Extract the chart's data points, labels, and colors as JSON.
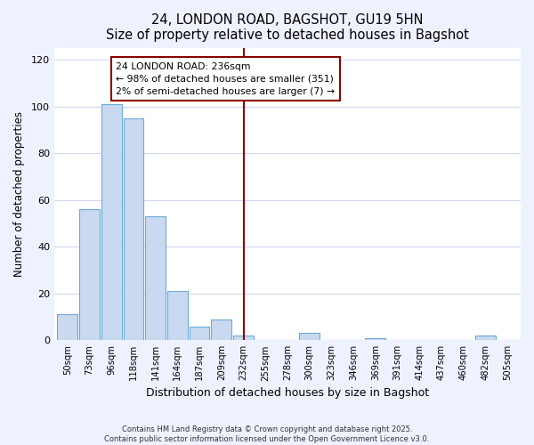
{
  "title": "24, LONDON ROAD, BAGSHOT, GU19 5HN",
  "subtitle": "Size of property relative to detached houses in Bagshot",
  "xlabel": "Distribution of detached houses by size in Bagshot",
  "ylabel": "Number of detached properties",
  "bar_labels": [
    "50sqm",
    "73sqm",
    "96sqm",
    "118sqm",
    "141sqm",
    "164sqm",
    "187sqm",
    "209sqm",
    "232sqm",
    "255sqm",
    "278sqm",
    "300sqm",
    "323sqm",
    "346sqm",
    "369sqm",
    "391sqm",
    "414sqm",
    "437sqm",
    "460sqm",
    "482sqm",
    "505sqm"
  ],
  "bar_values": [
    11,
    56,
    101,
    95,
    53,
    21,
    6,
    9,
    2,
    0,
    0,
    3,
    0,
    0,
    1,
    0,
    0,
    0,
    0,
    2,
    0
  ],
  "bar_color": "#c9d9f0",
  "bar_edge_color": "#6baad8",
  "marker_index": 8,
  "marker_color": "#8b0000",
  "ylim": [
    0,
    125
  ],
  "yticks": [
    0,
    20,
    40,
    60,
    80,
    100,
    120
  ],
  "annotation_title": "24 LONDON ROAD: 236sqm",
  "annotation_line1": "← 98% of detached houses are smaller (351)",
  "annotation_line2": "2% of semi-detached houses are larger (7) →",
  "footer_line1": "Contains HM Land Registry data © Crown copyright and database right 2025.",
  "footer_line2": "Contains public sector information licensed under the Open Government Licence v3.0.",
  "bg_color": "#eef2ff",
  "plot_bg_color": "#ffffff",
  "grid_color": "#d0d8f0"
}
